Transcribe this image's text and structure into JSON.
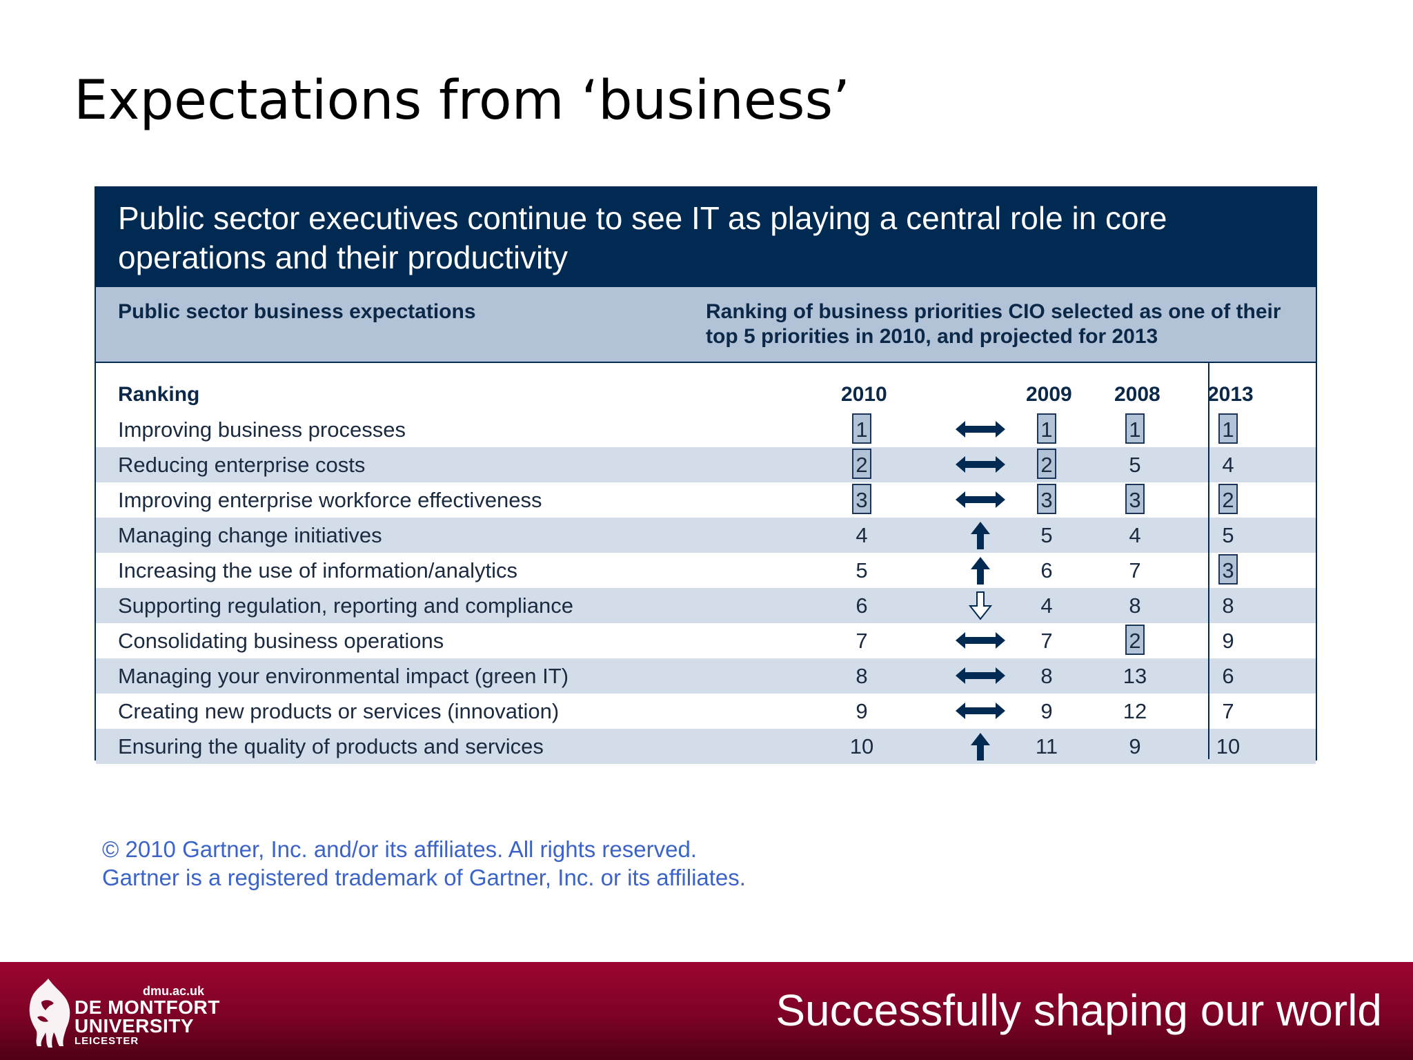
{
  "slide": {
    "title": "Expectations from ‘business’"
  },
  "figure": {
    "header": "Public sector executives continue to see IT as playing a central role in core operations and their productivity",
    "subheader_left": "Public sector business expectations",
    "subheader_right": "Ranking of business priorities CIO selected as one of their top 5 priorities in 2010, and projected for 2013",
    "column_headers": {
      "ranking": "Ranking",
      "y2010": "2010",
      "y2009": "2009",
      "y2008": "2008",
      "y2013": "2013"
    },
    "rows": [
      {
        "label": "Improving business processes",
        "y2010": "1",
        "trend": "unchanged",
        "y2009": "1",
        "y2008": "1",
        "y2013": "1"
      },
      {
        "label": "Reducing enterprise costs",
        "y2010": "2",
        "trend": "unchanged",
        "y2009": "2",
        "y2008": "5",
        "y2013": "4"
      },
      {
        "label": "Improving enterprise workforce effectiveness",
        "y2010": "3",
        "trend": "unchanged",
        "y2009": "3",
        "y2008": "3",
        "y2013": "2"
      },
      {
        "label": "Managing change initiatives",
        "y2010": "4",
        "trend": "up",
        "y2009": "5",
        "y2008": "4",
        "y2013": "5"
      },
      {
        "label": "Increasing the use of information/analytics",
        "y2010": "5",
        "trend": "up",
        "y2009": "6",
        "y2008": "7",
        "y2013": "3"
      },
      {
        "label": "Supporting regulation, reporting and compliance",
        "y2010": "6",
        "trend": "down",
        "y2009": "4",
        "y2008": "8",
        "y2013": "8"
      },
      {
        "label": "Consolidating business operations",
        "y2010": "7",
        "trend": "unchanged",
        "y2009": "7",
        "y2008": "2",
        "y2013": "9"
      },
      {
        "label": "Managing your environmental impact (green IT)",
        "y2010": "8",
        "trend": "unchanged",
        "y2009": "8",
        "y2008": "13",
        "y2013": "6"
      },
      {
        "label": "Creating new products or services (innovation)",
        "y2010": "9",
        "trend": "unchanged",
        "y2009": "9",
        "y2008": "12",
        "y2013": "7"
      },
      {
        "label": "Ensuring the quality of products and services",
        "y2010": "10",
        "trend": "up",
        "y2009": "11",
        "y2008": "9",
        "y2013": "10"
      }
    ]
  },
  "copyright": {
    "line1": "© 2010 Gartner, Inc. and/or its affiliates. All rights reserved.",
    "line2": "Gartner is a registered trademark of Gartner, Inc. or its affiliates."
  },
  "footer": {
    "url": "dmu.ac.uk",
    "university_line1": "DE MONTFORT",
    "university_line2": "UNIVERSITY",
    "city": "LEICESTER",
    "tagline": "Successfully shaping our world",
    "bar_color": "#8a0329"
  },
  "colors": {
    "header_navy": "#002a52",
    "subheader_blue": "#b2c2d7",
    "row_shade": "#d3dde9",
    "copyright_blue": "#3b63c8"
  }
}
